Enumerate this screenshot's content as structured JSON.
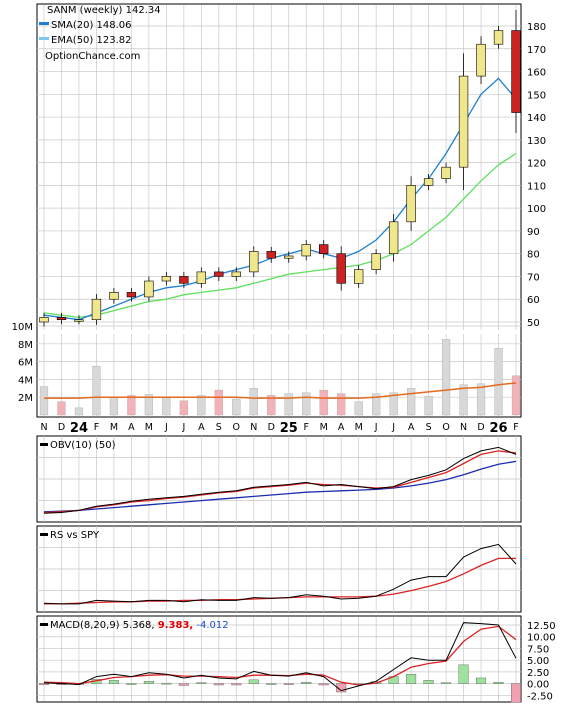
{
  "colors": {
    "sma": "#1e7fd0",
    "ema": "#5ee05e",
    "up": "#f0e68c",
    "down": "#cc2222",
    "candle_outline": "#000000",
    "vol_up": "#d8d8d8",
    "vol_down": "#f3b2b8",
    "vol_avg": "#e46a1c",
    "grid": "#c8c8c8",
    "obv": "#000000",
    "obv_sig": "#dd2222",
    "obv_long": "#1a2db0",
    "macd_hist_up": "#9de39d",
    "macd_hist_down": "#f0a0b0",
    "macd_sig_text": "#dd0000",
    "macd_hist_text": "#1a4cc8"
  },
  "legend": {
    "title": "SANM (weekly) 142.34",
    "sma": "SMA(20) 148.06",
    "ema": "EMA(50) 123.82",
    "source": "OptionChance.com"
  },
  "indicators": {
    "obv": "OBV(10) (50)",
    "rs": "RS vs SPY",
    "macd_label": "MACD(8,20,9) 5.368,",
    "macd_signal": "9.383,",
    "macd_hist": "-4.012"
  },
  "chart_data": {
    "type": "line",
    "title": "SANM (weekly) 142.34",
    "x_labels": [
      "N",
      "D",
      "24",
      "F",
      "M",
      "A",
      "M",
      "J",
      "J",
      "A",
      "S",
      "O",
      "N",
      "D",
      "25",
      "F",
      "M",
      "A",
      "M",
      "J",
      "J",
      "A",
      "S",
      "O",
      "N",
      "D",
      "26",
      "F"
    ],
    "series": [
      {
        "name": "SMA(20) 148.06",
        "x": [
          "N",
          "D",
          "24",
          "F",
          "M",
          "A",
          "M",
          "J",
          "J",
          "A",
          "S",
          "O",
          "N",
          "D",
          "25",
          "F",
          "M",
          "A",
          "M",
          "J",
          "J",
          "A",
          "S",
          "O",
          "N",
          "D",
          "26",
          "F"
        ],
        "values": [
          53,
          52,
          51,
          54,
          57,
          60,
          63,
          65,
          66,
          68,
          71,
          73,
          75,
          78,
          80,
          82,
          80,
          78,
          81,
          86,
          94,
          104,
          113,
          124,
          137,
          150,
          157,
          148
        ]
      },
      {
        "name": "EMA(50) 123.82",
        "x": [
          "N",
          "D",
          "24",
          "F",
          "M",
          "A",
          "M",
          "J",
          "J",
          "A",
          "S",
          "O",
          "N",
          "D",
          "25",
          "F",
          "M",
          "A",
          "M",
          "J",
          "J",
          "A",
          "S",
          "O",
          "N",
          "D",
          "26",
          "F"
        ],
        "values": [
          54,
          53,
          52,
          53,
          55,
          57,
          59,
          60,
          62,
          63,
          64,
          65,
          67,
          69,
          71,
          72,
          73,
          74,
          75,
          77,
          80,
          84,
          90,
          96,
          104,
          112,
          119,
          124
        ]
      }
    ],
    "price_close": [
      52,
      51,
      51,
      60,
      63,
      61,
      68,
      70,
      67,
      72,
      70,
      72,
      81,
      78,
      79,
      84,
      80,
      67,
      73,
      80,
      94,
      110,
      113,
      118,
      158,
      172,
      178,
      142
    ],
    "volume_m": [
      3.2,
      1.5,
      0.8,
      5.5,
      2.0,
      2.2,
      2.3,
      2.0,
      1.6,
      2.2,
      2.8,
      1.8,
      3.0,
      2.2,
      2.4,
      2.5,
      2.8,
      2.4,
      1.5,
      2.4,
      2.5,
      3.0,
      2.1,
      8.5,
      3.4,
      3.5,
      7.5,
      4.4
    ],
    "volume_avg_m": [
      1.9,
      1.9,
      1.9,
      2.0,
      2.0,
      2.0,
      2.0,
      2.0,
      2.0,
      2.0,
      2.0,
      2.0,
      1.9,
      1.9,
      1.9,
      2.0,
      1.9,
      1.9,
      1.9,
      2.0,
      2.2,
      2.4,
      2.6,
      2.8,
      3.0,
      3.1,
      3.4,
      3.6
    ],
    "ylim_price": [
      45,
      187
    ],
    "yticks_price": [
      50,
      60,
      70,
      80,
      90,
      100,
      110,
      120,
      130,
      140,
      150,
      160,
      170,
      180
    ],
    "yticks_volume": [
      "2M",
      "4M",
      "6M",
      "8M",
      "10M"
    ],
    "obv": [
      0.04,
      0.05,
      0.08,
      0.14,
      0.17,
      0.21,
      0.24,
      0.26,
      0.28,
      0.31,
      0.34,
      0.36,
      0.41,
      0.43,
      0.45,
      0.48,
      0.43,
      0.45,
      0.42,
      0.39,
      0.42,
      0.52,
      0.58,
      0.66,
      0.82,
      0.93,
      0.98,
      0.88
    ],
    "obv_signal": [
      0.05,
      0.06,
      0.08,
      0.13,
      0.16,
      0.2,
      0.22,
      0.25,
      0.27,
      0.3,
      0.33,
      0.35,
      0.4,
      0.42,
      0.44,
      0.47,
      0.45,
      0.44,
      0.42,
      0.4,
      0.41,
      0.48,
      0.55,
      0.62,
      0.75,
      0.88,
      0.93,
      0.9
    ],
    "obv_long": [
      0.06,
      0.07,
      0.08,
      0.1,
      0.12,
      0.14,
      0.16,
      0.18,
      0.2,
      0.22,
      0.24,
      0.26,
      0.28,
      0.3,
      0.32,
      0.34,
      0.35,
      0.36,
      0.37,
      0.38,
      0.4,
      0.43,
      0.47,
      0.52,
      0.59,
      0.67,
      0.74,
      0.78
    ],
    "rs": [
      0.04,
      0.03,
      0.03,
      0.08,
      0.07,
      0.06,
      0.08,
      0.08,
      0.06,
      0.09,
      0.08,
      0.08,
      0.12,
      0.11,
      0.12,
      0.16,
      0.14,
      0.1,
      0.11,
      0.14,
      0.24,
      0.37,
      0.42,
      0.42,
      0.7,
      0.82,
      0.88,
      0.6
    ],
    "rs_signal": [
      0.03,
      0.03,
      0.04,
      0.05,
      0.06,
      0.06,
      0.07,
      0.07,
      0.08,
      0.08,
      0.09,
      0.09,
      0.1,
      0.11,
      0.12,
      0.13,
      0.13,
      0.13,
      0.13,
      0.14,
      0.17,
      0.22,
      0.28,
      0.35,
      0.46,
      0.58,
      0.68,
      0.68
    ],
    "macd_ylim": [
      -3.5,
      14
    ],
    "macd_yticks": [
      12.5,
      10.0,
      7.5,
      5.0,
      2.5,
      0.0,
      -2.5
    ],
    "macd": [
      0.2,
      0.0,
      -0.2,
      1.5,
      2.0,
      1.5,
      2.3,
      2.0,
      1.2,
      1.8,
      1.2,
      1.0,
      2.6,
      1.8,
      1.6,
      2.3,
      1.5,
      -1.5,
      -0.5,
      0.5,
      3.0,
      5.5,
      5.0,
      5.0,
      13.0,
      12.8,
      12.5,
      5.4
    ],
    "macd_signal_values": [
      0.3,
      0.2,
      0.0,
      0.6,
      1.3,
      1.5,
      1.8,
      1.9,
      1.6,
      1.6,
      1.5,
      1.3,
      1.8,
      1.8,
      1.7,
      2.0,
      1.8,
      0.3,
      -0.3,
      0.1,
      1.5,
      3.5,
      4.3,
      4.8,
      9.0,
      11.6,
      12.2,
      9.4
    ],
    "macd_hist_values": [
      -0.1,
      -0.2,
      -0.2,
      0.9,
      0.7,
      0.0,
      0.5,
      0.1,
      -0.4,
      0.2,
      -0.3,
      -0.3,
      0.8,
      0.0,
      -0.1,
      0.3,
      -0.3,
      -1.8,
      -0.2,
      0.4,
      1.5,
      2.0,
      0.7,
      0.2,
      4.0,
      1.2,
      0.3,
      -4.0
    ]
  }
}
